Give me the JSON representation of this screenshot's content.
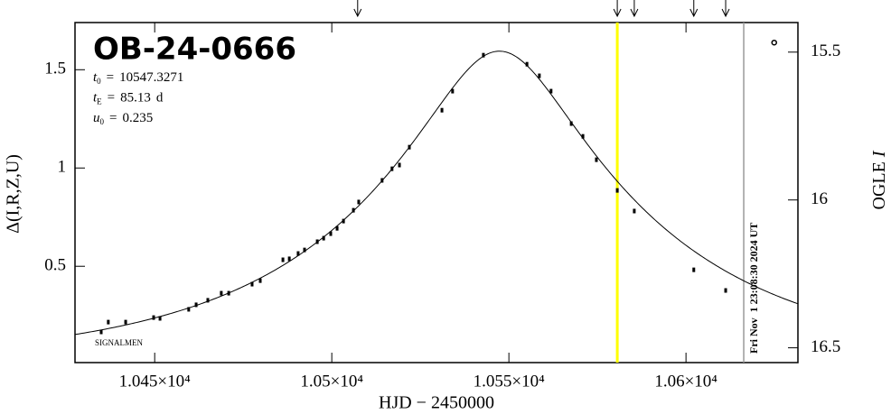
{
  "chart_data": {
    "type": "scatter",
    "title": "OB-24-0666",
    "xlabel": "HJD − 2450000",
    "ylabel": "Δ(I,R,Z,U)",
    "y2label": [
      "OGLE ",
      "I"
    ],
    "credit": "SIGNALMEN",
    "xlim": [
      10427.5,
      10631.6
    ],
    "xticks": [
      {
        "value": 10450,
        "label": "1.045×10⁴"
      },
      {
        "value": 10500,
        "label": "1.05×10⁴"
      },
      {
        "value": 10550,
        "label": "1.055×10⁴"
      },
      {
        "value": 10600,
        "label": "1.06×10⁴"
      }
    ],
    "ylim": [
      0.01,
      1.74
    ],
    "yticks": [
      0.5,
      1,
      1.5
    ],
    "y2lim": [
      16.55,
      15.4
    ],
    "y2ticks": [
      15.5,
      16,
      16.5
    ],
    "model": [
      {
        "var": "t",
        "sub": "0",
        "sep": "=",
        "value": 10547.3271
      },
      {
        "var": "t",
        "sub": "E",
        "sep": "=",
        "value": 85.13,
        "unit": "d"
      },
      {
        "var": "u",
        "sub": "0",
        "sep": "=",
        "value": 0.235
      }
    ],
    "x": [
      10434.9,
      10436.9,
      10441.8,
      10449.7,
      10451.5,
      10459.6,
      10461.7,
      10465.0,
      10468.8,
      10470.9,
      10477.5,
      10479.8,
      10486.2,
      10488.0,
      10490.5,
      10492.3,
      10495.9,
      10497.7,
      10499.7,
      10501.5,
      10503.3,
      10506.1,
      10507.6,
      10514.2,
      10517.0,
      10519.1,
      10521.9,
      10531.1,
      10534.1,
      10542.8,
      10555.1,
      10558.6,
      10561.9,
      10567.6,
      10570.9,
      10574.7,
      10580.6,
      10585.4,
      10602.2,
      10611.2
    ],
    "values": [
      0.166,
      0.216,
      0.216,
      0.239,
      0.235,
      0.281,
      0.304,
      0.327,
      0.363,
      0.363,
      0.409,
      0.427,
      0.533,
      0.538,
      0.565,
      0.583,
      0.625,
      0.643,
      0.666,
      0.693,
      0.73,
      0.785,
      0.827,
      0.937,
      0.996,
      1.015,
      1.106,
      1.294,
      1.391,
      1.574,
      1.528,
      1.469,
      1.391,
      1.226,
      1.161,
      1.042,
      0.886,
      0.781,
      0.482,
      0.377
    ],
    "open_points": {
      "x": [
        10624.9
      ],
      "values": [
        1.638
      ]
    },
    "arrows_x": [
      10507.3,
      10580.6,
      10585.4,
      10602.2,
      10611.2
    ],
    "now_line": {
      "x": 10580.6,
      "color": "#ffff00"
    },
    "date_line": {
      "x": 10616.3,
      "color": "#999999",
      "label": "Fri Nov  1 23:08:30 2024 UT"
    }
  }
}
